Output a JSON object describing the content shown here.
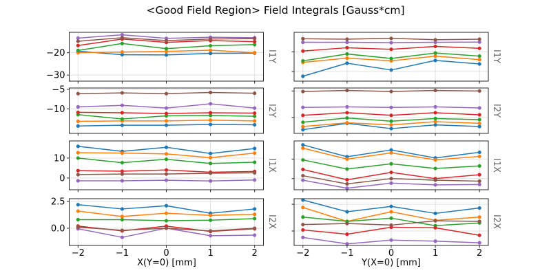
{
  "title": "<Good Field Region> Field Integrals [Gauss*cm]",
  "chart_data": {
    "type": "line",
    "title": "<Good Field Region> Field Integrals [Gauss*cm]",
    "marker": "o",
    "grid": true,
    "legend": "none",
    "x": [
      -2,
      -1,
      0,
      1,
      2
    ],
    "xtick_labels": [
      "−2",
      "−1",
      "0",
      "1",
      "2"
    ],
    "xlim": [
      -2.2,
      2.2
    ],
    "palette": {
      "blue": "#1f77b4",
      "orange": "#ff7f0e",
      "green": "#2ca02c",
      "red": "#d62728",
      "purple": "#9467bd",
      "brown": "#8c564b"
    },
    "columns": [
      {
        "xlabel": "X(Y=0) [mm]",
        "subplots": [
          {
            "row_label": "I1Y",
            "ylim": [
              -32.7,
              -10.9
            ],
            "yticks": [
              -20,
              -30
            ],
            "ytick_labels": [
              "−20",
              "−30"
            ],
            "series": [
              {
                "name": "blue",
                "color": "#1f77b4",
                "values": [
                  -19.3,
                  -20.9,
                  -21.0,
                  -20.3,
                  -20.2
                ]
              },
              {
                "name": "orange",
                "color": "#ff7f0e",
                "values": [
                  -20.0,
                  -19.7,
                  -19.4,
                  -18.9,
                  -20.0
                ]
              },
              {
                "name": "green",
                "color": "#2ca02c",
                "values": [
                  -19.0,
                  -15.9,
                  -18.2,
                  -16.9,
                  -16.4
                ]
              },
              {
                "name": "red",
                "color": "#d62728",
                "values": [
                  -16.8,
                  -13.9,
                  -15.4,
                  -14.6,
                  -15.1
                ]
              },
              {
                "name": "purple",
                "color": "#9467bd",
                "values": [
                  -13.5,
                  -12.0,
                  -13.6,
                  -13.1,
                  -13.3
                ]
              },
              {
                "name": "brown",
                "color": "#8c564b",
                "values": [
                  -14.9,
                  -13.3,
                  -14.6,
                  -13.9,
                  -13.7
                ]
              }
            ]
          },
          {
            "row_label": "I2Y",
            "ylim": [
              -16.3,
              -4.65
            ],
            "yticks": [
              -5,
              -10
            ],
            "ytick_labels": [
              "−5",
              "−10"
            ],
            "series": [
              {
                "name": "blue",
                "color": "#1f77b4",
                "values": [
                  -14.4,
                  -14.2,
                  -14.2,
                  -14.0,
                  -14.1
                ]
              },
              {
                "name": "orange",
                "color": "#ff7f0e",
                "values": [
                  -13.2,
                  -13.1,
                  -13.1,
                  -12.9,
                  -13.1
                ]
              },
              {
                "name": "green",
                "color": "#2ca02c",
                "values": [
                  -11.5,
                  -12.6,
                  -11.8,
                  -11.7,
                  -11.9
                ]
              },
              {
                "name": "red",
                "color": "#d62728",
                "values": [
                  -10.9,
                  -11.0,
                  -11.2,
                  -11.0,
                  -11.1
                ]
              },
              {
                "name": "purple",
                "color": "#9467bd",
                "values": [
                  -9.5,
                  -9.1,
                  -9.8,
                  -8.7,
                  -9.8
                ]
              },
              {
                "name": "brown",
                "color": "#8c564b",
                "values": [
                  -6.1,
                  -5.9,
                  -6.1,
                  -5.8,
                  -6.0
                ]
              }
            ]
          },
          {
            "row_label": "I1X",
            "ylim": [
              -5.9,
              18.6
            ],
            "yticks": [
              10,
              0
            ],
            "ytick_labels": [
              "10",
              "0"
            ],
            "series": [
              {
                "name": "blue",
                "color": "#1f77b4",
                "values": [
                  15.9,
                  13.4,
                  15.4,
                  12.3,
                  14.8
                ]
              },
              {
                "name": "orange",
                "color": "#ff7f0e",
                "values": [
                  12.7,
                  12.5,
                  12.1,
                  10.2,
                  12.5
                ]
              },
              {
                "name": "green",
                "color": "#2ca02c",
                "values": [
                  10.0,
                  7.7,
                  9.4,
                  7.3,
                  7.9
                ]
              },
              {
                "name": "red",
                "color": "#d62728",
                "values": [
                  3.7,
                  3.4,
                  4.0,
                  2.9,
                  3.3
                ]
              },
              {
                "name": "purple",
                "color": "#9467bd",
                "values": [
                  -1.4,
                  -1.4,
                  -1.1,
                  -1.5,
                  -1.0
                ]
              },
              {
                "name": "brown",
                "color": "#8c564b",
                "values": [
                  1.7,
                  2.0,
                  2.0,
                  2.4,
                  2.6
                ]
              }
            ]
          },
          {
            "row_label": "I2X",
            "ylim": [
              -1.61,
              2.76
            ],
            "yticks": [
              2.5,
              0.0
            ],
            "ytick_labels": [
              "2.5",
              "0.0"
            ],
            "series": [
              {
                "name": "blue",
                "color": "#1f77b4",
                "values": [
                  2.2,
                  1.8,
                  2.1,
                  1.4,
                  1.8
                ]
              },
              {
                "name": "orange",
                "color": "#ff7f0e",
                "values": [
                  1.6,
                  1.1,
                  1.4,
                  1.2,
                  1.3
                ]
              },
              {
                "name": "green",
                "color": "#2ca02c",
                "values": [
                  0.8,
                  0.8,
                  0.7,
                  0.75,
                  0.9
                ]
              },
              {
                "name": "red",
                "color": "#d62728",
                "values": [
                  0.2,
                  -0.25,
                  0.2,
                  -0.3,
                  -0.05
                ]
              },
              {
                "name": "purple",
                "color": "#9467bd",
                "values": [
                  -0.05,
                  -0.85,
                  0.0,
                  -0.7,
                  -0.65
                ]
              },
              {
                "name": "brown",
                "color": "#8c564b",
                "values": [
                  0.1,
                  -0.2,
                  0.0,
                  -0.25,
                  0.0
                ]
              }
            ]
          }
        ]
      },
      {
        "xlabel": "Y(X=0) [mm]",
        "subplots": [
          {
            "row_label": "I1Y",
            "ylim": [
              -35.0,
              -10.0
            ],
            "yticks": [
              -20,
              -30
            ],
            "ytick_labels": [],
            "series": [
              {
                "name": "blue",
                "color": "#1f77b4",
                "values": [
                  -32.5,
                  -25.8,
                  -29.3,
                  -24.4,
                  -26.2
                ]
              },
              {
                "name": "orange",
                "color": "#ff7f0e",
                "values": [
                  -25.4,
                  -23.2,
                  -24.6,
                  -22.2,
                  -24.0
                ]
              },
              {
                "name": "green",
                "color": "#2ca02c",
                "values": [
                  -24.6,
                  -21.1,
                  -23.4,
                  -20.6,
                  -22.2
                ]
              },
              {
                "name": "red",
                "color": "#d62728",
                "values": [
                  -19.6,
                  -17.9,
                  -18.7,
                  -17.2,
                  -18.2
                ]
              },
              {
                "name": "purple",
                "color": "#9467bd",
                "values": [
                  -15.1,
                  -15.1,
                  -15.3,
                  -15.1,
                  -15.0
                ]
              },
              {
                "name": "brown",
                "color": "#8c564b",
                "values": [
                  -13.3,
                  -13.5,
                  -13.1,
                  -13.8,
                  -13.5
                ]
              }
            ]
          },
          {
            "row_label": "I2Y",
            "ylim": [
              -13.0,
              -4.44
            ],
            "yticks": [
              -5,
              -10
            ],
            "ytick_labels": [],
            "series": [
              {
                "name": "blue",
                "color": "#1f77b4",
                "values": [
                  -12.3,
                  -11.1,
                  -12.1,
                  -11.4,
                  -11.7
                ]
              },
              {
                "name": "orange",
                "color": "#ff7f0e",
                "values": [
                  -11.7,
                  -11.0,
                  -11.4,
                  -10.8,
                  -11.1
                ]
              },
              {
                "name": "green",
                "color": "#2ca02c",
                "values": [
                  -10.9,
                  -10.1,
                  -10.7,
                  -10.2,
                  -10.4
                ]
              },
              {
                "name": "red",
                "color": "#d62728",
                "values": [
                  -9.6,
                  -9.1,
                  -9.6,
                  -9.1,
                  -9.5
                ]
              },
              {
                "name": "purple",
                "color": "#9467bd",
                "values": [
                  -8.1,
                  -8.0,
                  -8.1,
                  -8.0,
                  -8.2
                ]
              },
              {
                "name": "brown",
                "color": "#8c564b",
                "values": [
                  -5.1,
                  -4.9,
                  -5.1,
                  -4.9,
                  -5.0
                ]
              }
            ]
          },
          {
            "row_label": "I1X",
            "ylim": [
              -5.7,
              19.3
            ],
            "yticks": [
              10,
              0
            ],
            "ytick_labels": [],
            "series": [
              {
                "name": "blue",
                "color": "#1f77b4",
                "values": [
                  17.3,
                  11.2,
                  14.7,
                  10.6,
                  13.5
                ]
              },
              {
                "name": "orange",
                "color": "#ff7f0e",
                "values": [
                  15.6,
                  10.0,
                  13.2,
                  9.6,
                  11.4
                ]
              },
              {
                "name": "green",
                "color": "#2ca02c",
                "values": [
                  9.6,
                  4.9,
                  7.6,
                  5.2,
                  6.5
                ]
              },
              {
                "name": "red",
                "color": "#d62728",
                "values": [
                  4.7,
                  -0.6,
                  3.2,
                  0.0,
                  2.0
                ]
              },
              {
                "name": "purple",
                "color": "#9467bd",
                "values": [
                  -0.8,
                  -4.9,
                  -2.3,
                  -3.2,
                  -3.0
                ]
              },
              {
                "name": "brown",
                "color": "#8c564b",
                "values": [
                  1.5,
                  -2.7,
                  0.0,
                  -0.8,
                  -1.3
                ]
              }
            ]
          },
          {
            "row_label": "I2X",
            "ylim": [
              -1.35,
              3.02
            ],
            "yticks": [
              2.5,
              0.0
            ],
            "ytick_labels": [],
            "series": [
              {
                "name": "blue",
                "color": "#1f77b4",
                "values": [
                  2.9,
                  1.8,
                  2.3,
                  1.65,
                  2.15
                ]
              },
              {
                "name": "orange",
                "color": "#ff7f0e",
                "values": [
                  2.2,
                  0.9,
                  1.8,
                  1.0,
                  1.3
                ]
              },
              {
                "name": "green",
                "color": "#2ca02c",
                "values": [
                  1.3,
                  0.9,
                  1.2,
                  0.5,
                  0.75
                ]
              },
              {
                "name": "red",
                "color": "#d62728",
                "values": [
                  0.1,
                  -0.3,
                  0.35,
                  0.3,
                  -0.4
                ]
              },
              {
                "name": "purple",
                "color": "#9467bd",
                "values": [
                  -0.6,
                  -1.2,
                  -0.85,
                  -0.95,
                  -1.1
                ]
              },
              {
                "name": "brown",
                "color": "#8c564b",
                "values": [
                  0.6,
                  0.7,
                  0.55,
                  0.95,
                  0.9
                ]
              }
            ]
          }
        ]
      }
    ]
  }
}
